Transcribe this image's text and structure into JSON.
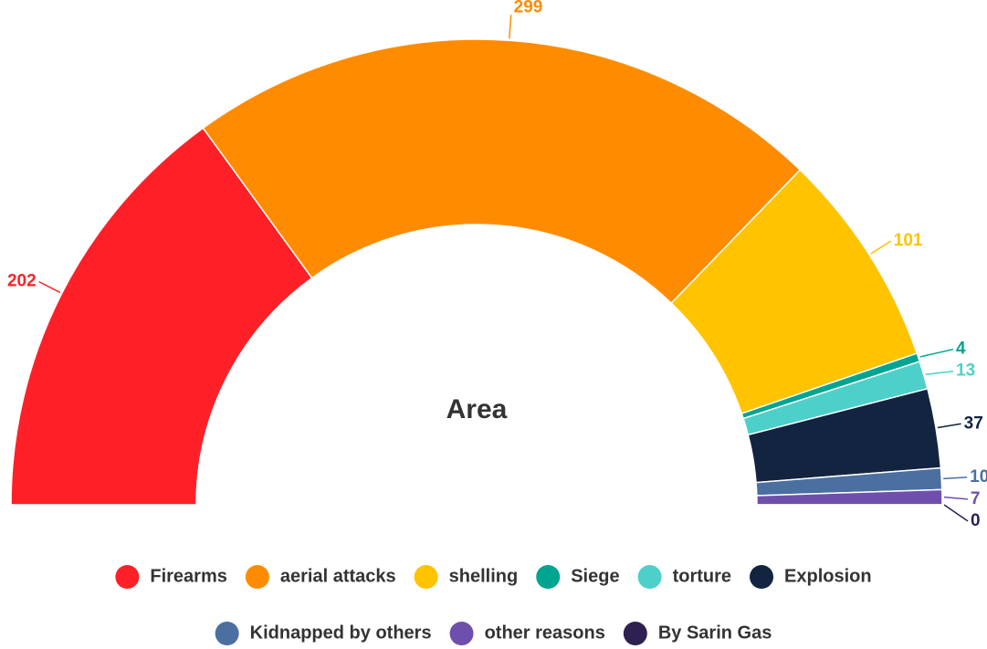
{
  "chart_data": {
    "type": "pie",
    "title": "Area",
    "categories": [
      "Firearms",
      "aerial attacks",
      "shelling",
      "Siege",
      "torture",
      "Explosion",
      "Kidnapped by others",
      "other reasons",
      "By Sarin Gas"
    ],
    "values": [
      202,
      299,
      101,
      4,
      13,
      37,
      10,
      7,
      0
    ],
    "colors": [
      "#ff2027",
      "#ff8c00",
      "#ffc300",
      "#00a591",
      "#4dd0c9",
      "#12243f",
      "#4a6fa0",
      "#6f4fae",
      "#2e2050"
    ],
    "legend": "bottom"
  }
}
